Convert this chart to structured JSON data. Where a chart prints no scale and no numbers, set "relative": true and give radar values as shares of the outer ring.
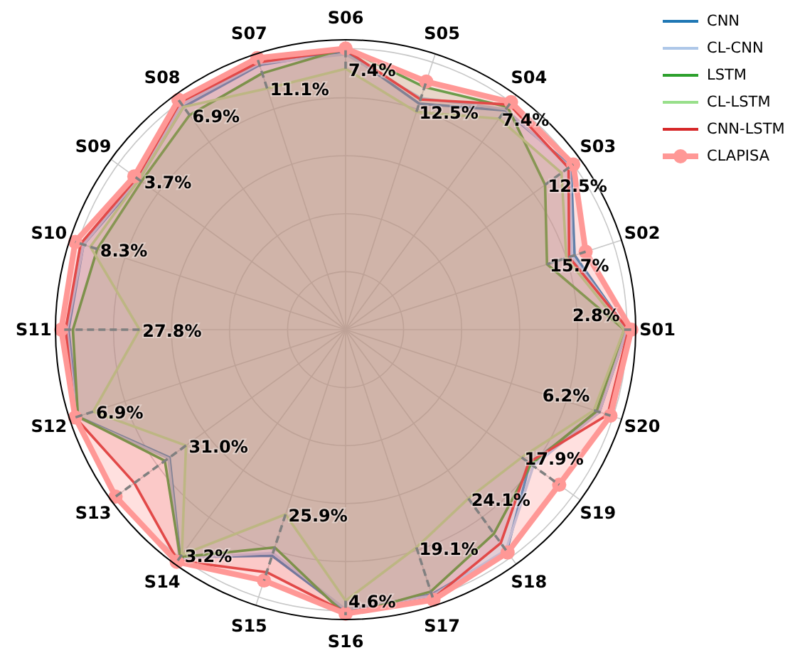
{
  "chart_data": {
    "type": "radar",
    "relative": true,
    "grid": true,
    "legend": "top right",
    "marker": "none",
    "categories": [
      "S06",
      "S05",
      "S04",
      "S03",
      "S02",
      "S01",
      "S20",
      "S19",
      "S18",
      "S17",
      "S16",
      "S15",
      "S14",
      "S13",
      "S12",
      "S11",
      "S10",
      "S09",
      "S08",
      "S07"
    ],
    "series": [
      {
        "name": "CNN",
        "color": "#1f77b4",
        "values": [
          0.96,
          0.82,
          0.935,
          0.96,
          0.83,
          0.97,
          0.92,
          0.785,
          0.945,
          0.96,
          0.97,
          0.82,
          0.97,
          0.75,
          0.97,
          0.955,
          0.95,
          0.88,
          0.95,
          0.96
        ]
      },
      {
        "name": "CL-CNN",
        "color": "#aec7e8",
        "values": [
          0.95,
          0.84,
          0.94,
          0.955,
          0.82,
          0.97,
          0.92,
          0.8,
          0.94,
          0.965,
          0.965,
          0.81,
          0.975,
          0.755,
          0.975,
          0.96,
          0.95,
          0.885,
          0.96,
          0.965
        ]
      },
      {
        "name": "LSTM",
        "color": "#2ca02c",
        "values": [
          0.97,
          0.88,
          0.95,
          0.85,
          0.73,
          0.96,
          0.91,
          0.79,
          0.87,
          0.95,
          0.985,
          0.79,
          0.97,
          0.77,
          0.97,
          0.94,
          0.9,
          0.87,
          0.915,
          0.93
        ]
      },
      {
        "name": "CL-LSTM",
        "color": "#98df8a",
        "values": [
          0.9,
          0.79,
          0.9,
          0.92,
          0.8,
          0.96,
          0.9,
          0.75,
          0.72,
          0.79,
          0.935,
          0.67,
          0.96,
          0.68,
          0.915,
          0.71,
          0.925,
          0.88,
          0.95,
          0.875
        ]
      },
      {
        "name": "CNN-LSTM",
        "color": "#d62728",
        "values": [
          0.965,
          0.835,
          0.96,
          0.95,
          0.81,
          0.975,
          0.95,
          0.78,
          0.91,
          0.975,
          0.975,
          0.88,
          0.985,
          0.9,
          0.98,
          0.965,
          0.96,
          0.89,
          0.97,
          0.97
        ]
      },
      {
        "name": "CLAPISA",
        "color": "#ff9896",
        "marker": "circle",
        "values": [
          0.97,
          0.9,
          0.97,
          0.97,
          0.87,
          0.985,
          0.96,
          0.91,
          0.95,
          0.98,
          0.98,
          0.91,
          0.99,
          0.98,
          0.98,
          0.98,
          0.98,
          0.9,
          0.98,
          0.985
        ]
      }
    ],
    "annotations": [
      {
        "text": "2.8%",
        "x": "S01"
      },
      {
        "text": "15.7%",
        "x": "S02"
      },
      {
        "text": "12.5%",
        "x": "S03"
      },
      {
        "text": "7.4%",
        "x": "S04"
      },
      {
        "text": "12.5%",
        "x": "S05"
      },
      {
        "text": "7.4%",
        "x": "S06"
      },
      {
        "text": "11.1%",
        "x": "S07"
      },
      {
        "text": "6.9%",
        "x": "S08"
      },
      {
        "text": "3.7%",
        "x": "S09"
      },
      {
        "text": "8.3%",
        "x": "S10"
      },
      {
        "text": "27.8%",
        "x": "S11"
      },
      {
        "text": "6.9%",
        "x": "S12"
      },
      {
        "text": "31.0%",
        "x": "S13"
      },
      {
        "text": "3.2%",
        "x": "S14"
      },
      {
        "text": "25.9%",
        "x": "S15"
      },
      {
        "text": "4.6%",
        "x": "S16"
      },
      {
        "text": "19.1%",
        "x": "S17"
      },
      {
        "text": "24.1%",
        "x": "S18"
      },
      {
        "text": "17.9%",
        "x": "S19"
      },
      {
        "text": "6.2%",
        "x": "S20"
      }
    ]
  }
}
